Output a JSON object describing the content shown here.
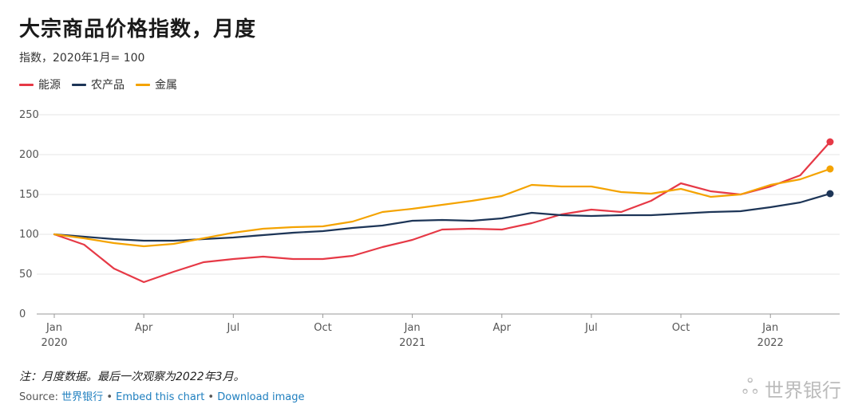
{
  "title": "大宗商品价格指数，月度",
  "subtitle": "指数，2020年1月= 100",
  "note": "注：月度数据。最后一次观察为2022年3月。",
  "source": {
    "prefix": "Source: ",
    "link": "世界银行",
    "sep1": " • ",
    "embed": "Embed this chart",
    "sep2": " • ",
    "download": "Download image"
  },
  "watermark": {
    "text": "世界银行",
    "icon": "weibo-icon"
  },
  "chart_data": {
    "type": "line",
    "x": [
      "2020-01",
      "2020-02",
      "2020-03",
      "2020-04",
      "2020-05",
      "2020-06",
      "2020-07",
      "2020-08",
      "2020-09",
      "2020-10",
      "2020-11",
      "2020-12",
      "2021-01",
      "2021-02",
      "2021-03",
      "2021-04",
      "2021-05",
      "2021-06",
      "2021-07",
      "2021-08",
      "2021-09",
      "2021-10",
      "2021-11",
      "2021-12",
      "2022-01",
      "2022-02",
      "2022-03"
    ],
    "x_ticks": [
      {
        "index": 0,
        "label": "Jan",
        "year": "2020"
      },
      {
        "index": 3,
        "label": "Apr",
        "year": ""
      },
      {
        "index": 6,
        "label": "Jul",
        "year": ""
      },
      {
        "index": 9,
        "label": "Oct",
        "year": ""
      },
      {
        "index": 12,
        "label": "Jan",
        "year": "2021"
      },
      {
        "index": 15,
        "label": "Apr",
        "year": ""
      },
      {
        "index": 18,
        "label": "Jul",
        "year": ""
      },
      {
        "index": 21,
        "label": "Oct",
        "year": ""
      },
      {
        "index": 24,
        "label": "Jan",
        "year": "2022"
      }
    ],
    "ylim": [
      0,
      250
    ],
    "y_ticks": [
      0,
      50,
      100,
      150,
      200,
      250
    ],
    "grid": true,
    "legend": "top-left",
    "series": [
      {
        "name": "能源",
        "color": "#e63946",
        "values": [
          100,
          87,
          57,
          40,
          53,
          65,
          69,
          72,
          69,
          69,
          73,
          84,
          93,
          106,
          107,
          106,
          114,
          125,
          131,
          128,
          142,
          164,
          154,
          150,
          160,
          174,
          216
        ]
      },
      {
        "name": "农产品",
        "color": "#1d3557",
        "values": [
          100,
          97,
          94,
          92,
          92,
          94,
          96,
          99,
          102,
          104,
          108,
          111,
          117,
          118,
          117,
          120,
          127,
          124,
          123,
          124,
          124,
          126,
          128,
          129,
          134,
          140,
          151
        ]
      },
      {
        "name": "金属",
        "color": "#f4a300",
        "values": [
          100,
          95,
          89,
          85,
          88,
          95,
          102,
          107,
          109,
          110,
          116,
          128,
          132,
          137,
          142,
          148,
          162,
          160,
          160,
          153,
          151,
          157,
          147,
          150,
          162,
          169,
          182
        ]
      }
    ]
  }
}
